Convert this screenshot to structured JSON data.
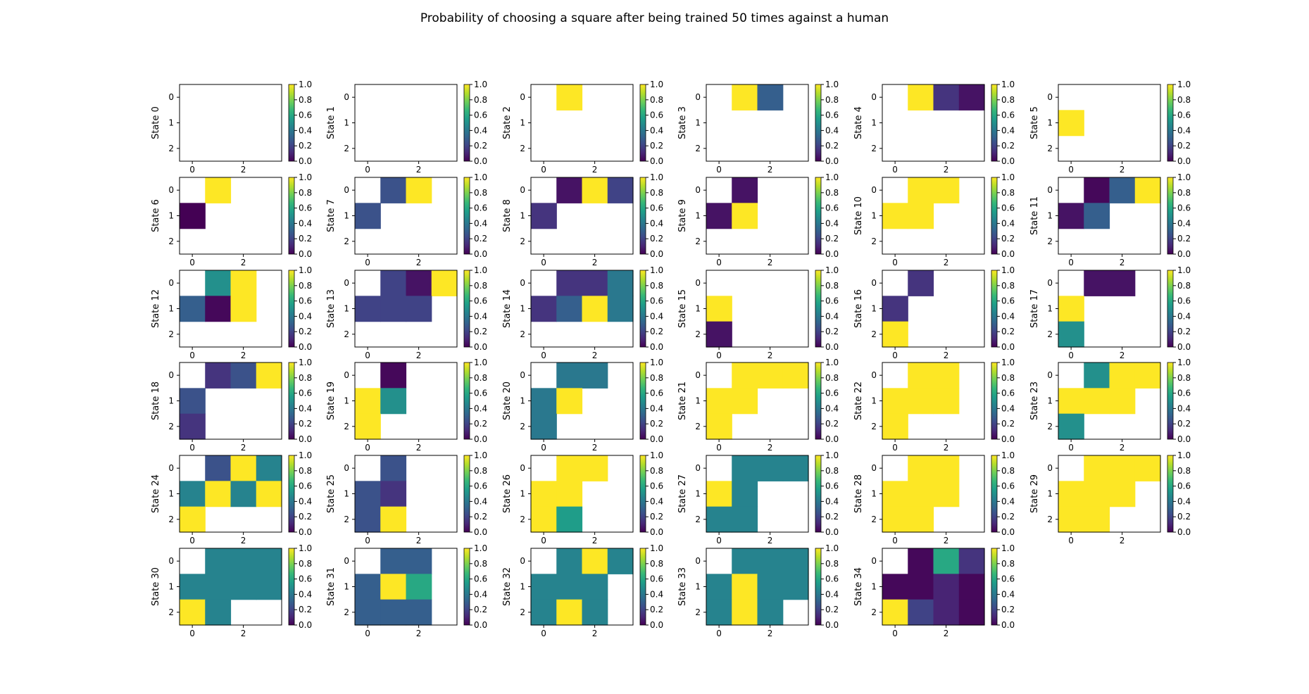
{
  "title": "Probability of choosing a square after being trained 50 times against a human",
  "colorbar": {
    "colormap": "viridis",
    "min": 0.0,
    "max": 1.0,
    "ticks": [
      "0.0",
      "0.2",
      "0.4",
      "0.6",
      "0.8",
      "1.0"
    ]
  },
  "chart_data": {
    "type": "heatmap",
    "title": "Probability of choosing a square after being trained 50 times against a human",
    "grid_shape": [
      3,
      4
    ],
    "x_tick_labels": [
      "0",
      "2"
    ],
    "y_tick_labels": [
      "0",
      "1",
      "2"
    ],
    "value_range": [
      0,
      1
    ],
    "empty_cell": null,
    "panels": [
      {
        "name": "State 0",
        "values": [
          [
            null,
            null,
            null,
            null
          ],
          [
            null,
            null,
            null,
            null
          ],
          [
            null,
            null,
            null,
            null
          ]
        ]
      },
      {
        "name": "State 1",
        "values": [
          [
            null,
            null,
            null,
            null
          ],
          [
            null,
            null,
            null,
            null
          ],
          [
            null,
            null,
            null,
            null
          ]
        ]
      },
      {
        "name": "State 2",
        "values": [
          [
            null,
            1.0,
            null,
            null
          ],
          [
            null,
            null,
            null,
            null
          ],
          [
            null,
            null,
            null,
            null
          ]
        ]
      },
      {
        "name": "State 3",
        "values": [
          [
            null,
            1.0,
            0.3,
            null
          ],
          [
            null,
            null,
            null,
            null
          ],
          [
            null,
            null,
            null,
            null
          ]
        ]
      },
      {
        "name": "State 4",
        "values": [
          [
            null,
            1.0,
            0.15,
            0.05
          ],
          [
            null,
            null,
            null,
            null
          ],
          [
            null,
            null,
            null,
            null
          ]
        ]
      },
      {
        "name": "State 5",
        "values": [
          [
            null,
            null,
            null,
            null
          ],
          [
            1.0,
            null,
            null,
            null
          ],
          [
            null,
            null,
            null,
            null
          ]
        ]
      },
      {
        "name": "State 6",
        "values": [
          [
            null,
            1.0,
            null,
            null
          ],
          [
            0.0,
            null,
            null,
            null
          ],
          [
            null,
            null,
            null,
            null
          ]
        ]
      },
      {
        "name": "State 7",
        "values": [
          [
            null,
            0.25,
            1.0,
            null
          ],
          [
            0.25,
            null,
            null,
            null
          ],
          [
            null,
            null,
            null,
            null
          ]
        ]
      },
      {
        "name": "State 8",
        "values": [
          [
            null,
            0.05,
            1.0,
            0.2
          ],
          [
            0.15,
            null,
            null,
            null
          ],
          [
            null,
            null,
            null,
            null
          ]
        ]
      },
      {
        "name": "State 9",
        "values": [
          [
            null,
            0.05,
            null,
            null
          ],
          [
            0.05,
            1.0,
            null,
            null
          ],
          [
            null,
            null,
            null,
            null
          ]
        ]
      },
      {
        "name": "State 10",
        "values": [
          [
            null,
            1.0,
            1.0,
            null
          ],
          [
            1.0,
            1.0,
            null,
            null
          ],
          [
            null,
            null,
            null,
            null
          ]
        ]
      },
      {
        "name": "State 11",
        "values": [
          [
            null,
            0.02,
            0.3,
            1.0
          ],
          [
            0.05,
            0.3,
            null,
            null
          ],
          [
            null,
            null,
            null,
            null
          ]
        ]
      },
      {
        "name": "State 12",
        "values": [
          [
            null,
            0.5,
            1.0,
            null
          ],
          [
            0.3,
            0.02,
            1.0,
            null
          ],
          [
            null,
            null,
            null,
            null
          ]
        ]
      },
      {
        "name": "State 13",
        "values": [
          [
            null,
            0.2,
            0.05,
            1.0
          ],
          [
            0.2,
            0.2,
            0.2,
            null
          ],
          [
            null,
            null,
            null,
            null
          ]
        ]
      },
      {
        "name": "State 14",
        "values": [
          [
            null,
            0.15,
            0.15,
            0.4
          ],
          [
            0.15,
            0.3,
            1.0,
            0.4
          ],
          [
            null,
            null,
            null,
            null
          ]
        ]
      },
      {
        "name": "State 15",
        "values": [
          [
            null,
            null,
            null,
            null
          ],
          [
            1.0,
            null,
            null,
            null
          ],
          [
            0.05,
            null,
            null,
            null
          ]
        ]
      },
      {
        "name": "State 16",
        "values": [
          [
            null,
            0.15,
            null,
            null
          ],
          [
            0.15,
            null,
            null,
            null
          ],
          [
            1.0,
            null,
            null,
            null
          ]
        ]
      },
      {
        "name": "State 17",
        "values": [
          [
            null,
            0.05,
            0.05,
            null
          ],
          [
            1.0,
            null,
            null,
            null
          ],
          [
            0.5,
            null,
            null,
            null
          ]
        ]
      },
      {
        "name": "State 18",
        "values": [
          [
            null,
            0.15,
            0.25,
            1.0
          ],
          [
            0.25,
            null,
            null,
            null
          ],
          [
            0.15,
            null,
            null,
            null
          ]
        ]
      },
      {
        "name": "State 19",
        "values": [
          [
            null,
            0.02,
            null,
            null
          ],
          [
            1.0,
            0.5,
            null,
            null
          ],
          [
            1.0,
            null,
            null,
            null
          ]
        ]
      },
      {
        "name": "State 20",
        "values": [
          [
            null,
            0.4,
            0.4,
            null
          ],
          [
            0.4,
            1.0,
            null,
            null
          ],
          [
            0.4,
            null,
            null,
            null
          ]
        ]
      },
      {
        "name": "State 21",
        "values": [
          [
            null,
            1.0,
            1.0,
            1.0
          ],
          [
            1.0,
            1.0,
            null,
            null
          ],
          [
            1.0,
            null,
            null,
            null
          ]
        ]
      },
      {
        "name": "State 22",
        "values": [
          [
            null,
            1.0,
            1.0,
            null
          ],
          [
            1.0,
            1.0,
            1.0,
            null
          ],
          [
            1.0,
            null,
            null,
            null
          ]
        ]
      },
      {
        "name": "State 23",
        "values": [
          [
            null,
            0.5,
            1.0,
            1.0
          ],
          [
            1.0,
            1.0,
            1.0,
            null
          ],
          [
            0.5,
            null,
            null,
            null
          ]
        ]
      },
      {
        "name": "State 24",
        "values": [
          [
            null,
            0.25,
            1.0,
            0.45
          ],
          [
            0.45,
            1.0,
            0.45,
            1.0
          ],
          [
            1.0,
            null,
            null,
            null
          ]
        ]
      },
      {
        "name": "State 25",
        "values": [
          [
            null,
            0.25,
            null,
            null
          ],
          [
            0.25,
            0.15,
            null,
            null
          ],
          [
            0.25,
            1.0,
            null,
            null
          ]
        ]
      },
      {
        "name": "State 26",
        "values": [
          [
            null,
            1.0,
            1.0,
            null
          ],
          [
            1.0,
            1.0,
            null,
            null
          ],
          [
            1.0,
            0.55,
            null,
            null
          ]
        ]
      },
      {
        "name": "State 27",
        "values": [
          [
            null,
            0.45,
            0.45,
            0.45
          ],
          [
            1.0,
            0.45,
            null,
            null
          ],
          [
            0.45,
            0.45,
            null,
            null
          ]
        ]
      },
      {
        "name": "State 28",
        "values": [
          [
            null,
            1.0,
            1.0,
            null
          ],
          [
            1.0,
            1.0,
            1.0,
            null
          ],
          [
            1.0,
            1.0,
            null,
            null
          ]
        ]
      },
      {
        "name": "State 29",
        "values": [
          [
            null,
            1.0,
            1.0,
            1.0
          ],
          [
            1.0,
            1.0,
            1.0,
            null
          ],
          [
            1.0,
            1.0,
            null,
            null
          ]
        ]
      },
      {
        "name": "State 30",
        "values": [
          [
            null,
            0.45,
            0.45,
            0.45
          ],
          [
            0.45,
            0.45,
            0.45,
            0.45
          ],
          [
            1.0,
            0.45,
            null,
            null
          ]
        ]
      },
      {
        "name": "State 31",
        "values": [
          [
            null,
            0.3,
            0.3,
            null
          ],
          [
            0.3,
            1.0,
            0.6,
            null
          ],
          [
            0.3,
            0.3,
            0.3,
            null
          ]
        ]
      },
      {
        "name": "State 32",
        "values": [
          [
            null,
            0.45,
            1.0,
            0.45
          ],
          [
            0.45,
            0.45,
            0.45,
            null
          ],
          [
            0.45,
            1.0,
            0.45,
            null
          ]
        ]
      },
      {
        "name": "State 33",
        "values": [
          [
            null,
            0.45,
            0.45,
            0.45
          ],
          [
            0.45,
            1.0,
            0.45,
            0.45
          ],
          [
            0.45,
            1.0,
            0.45,
            null
          ]
        ]
      },
      {
        "name": "State 34",
        "values": [
          [
            null,
            0.02,
            0.6,
            0.15
          ],
          [
            0.02,
            0.02,
            0.1,
            0.02
          ],
          [
            1.0,
            0.2,
            0.1,
            0.02
          ]
        ]
      }
    ]
  }
}
